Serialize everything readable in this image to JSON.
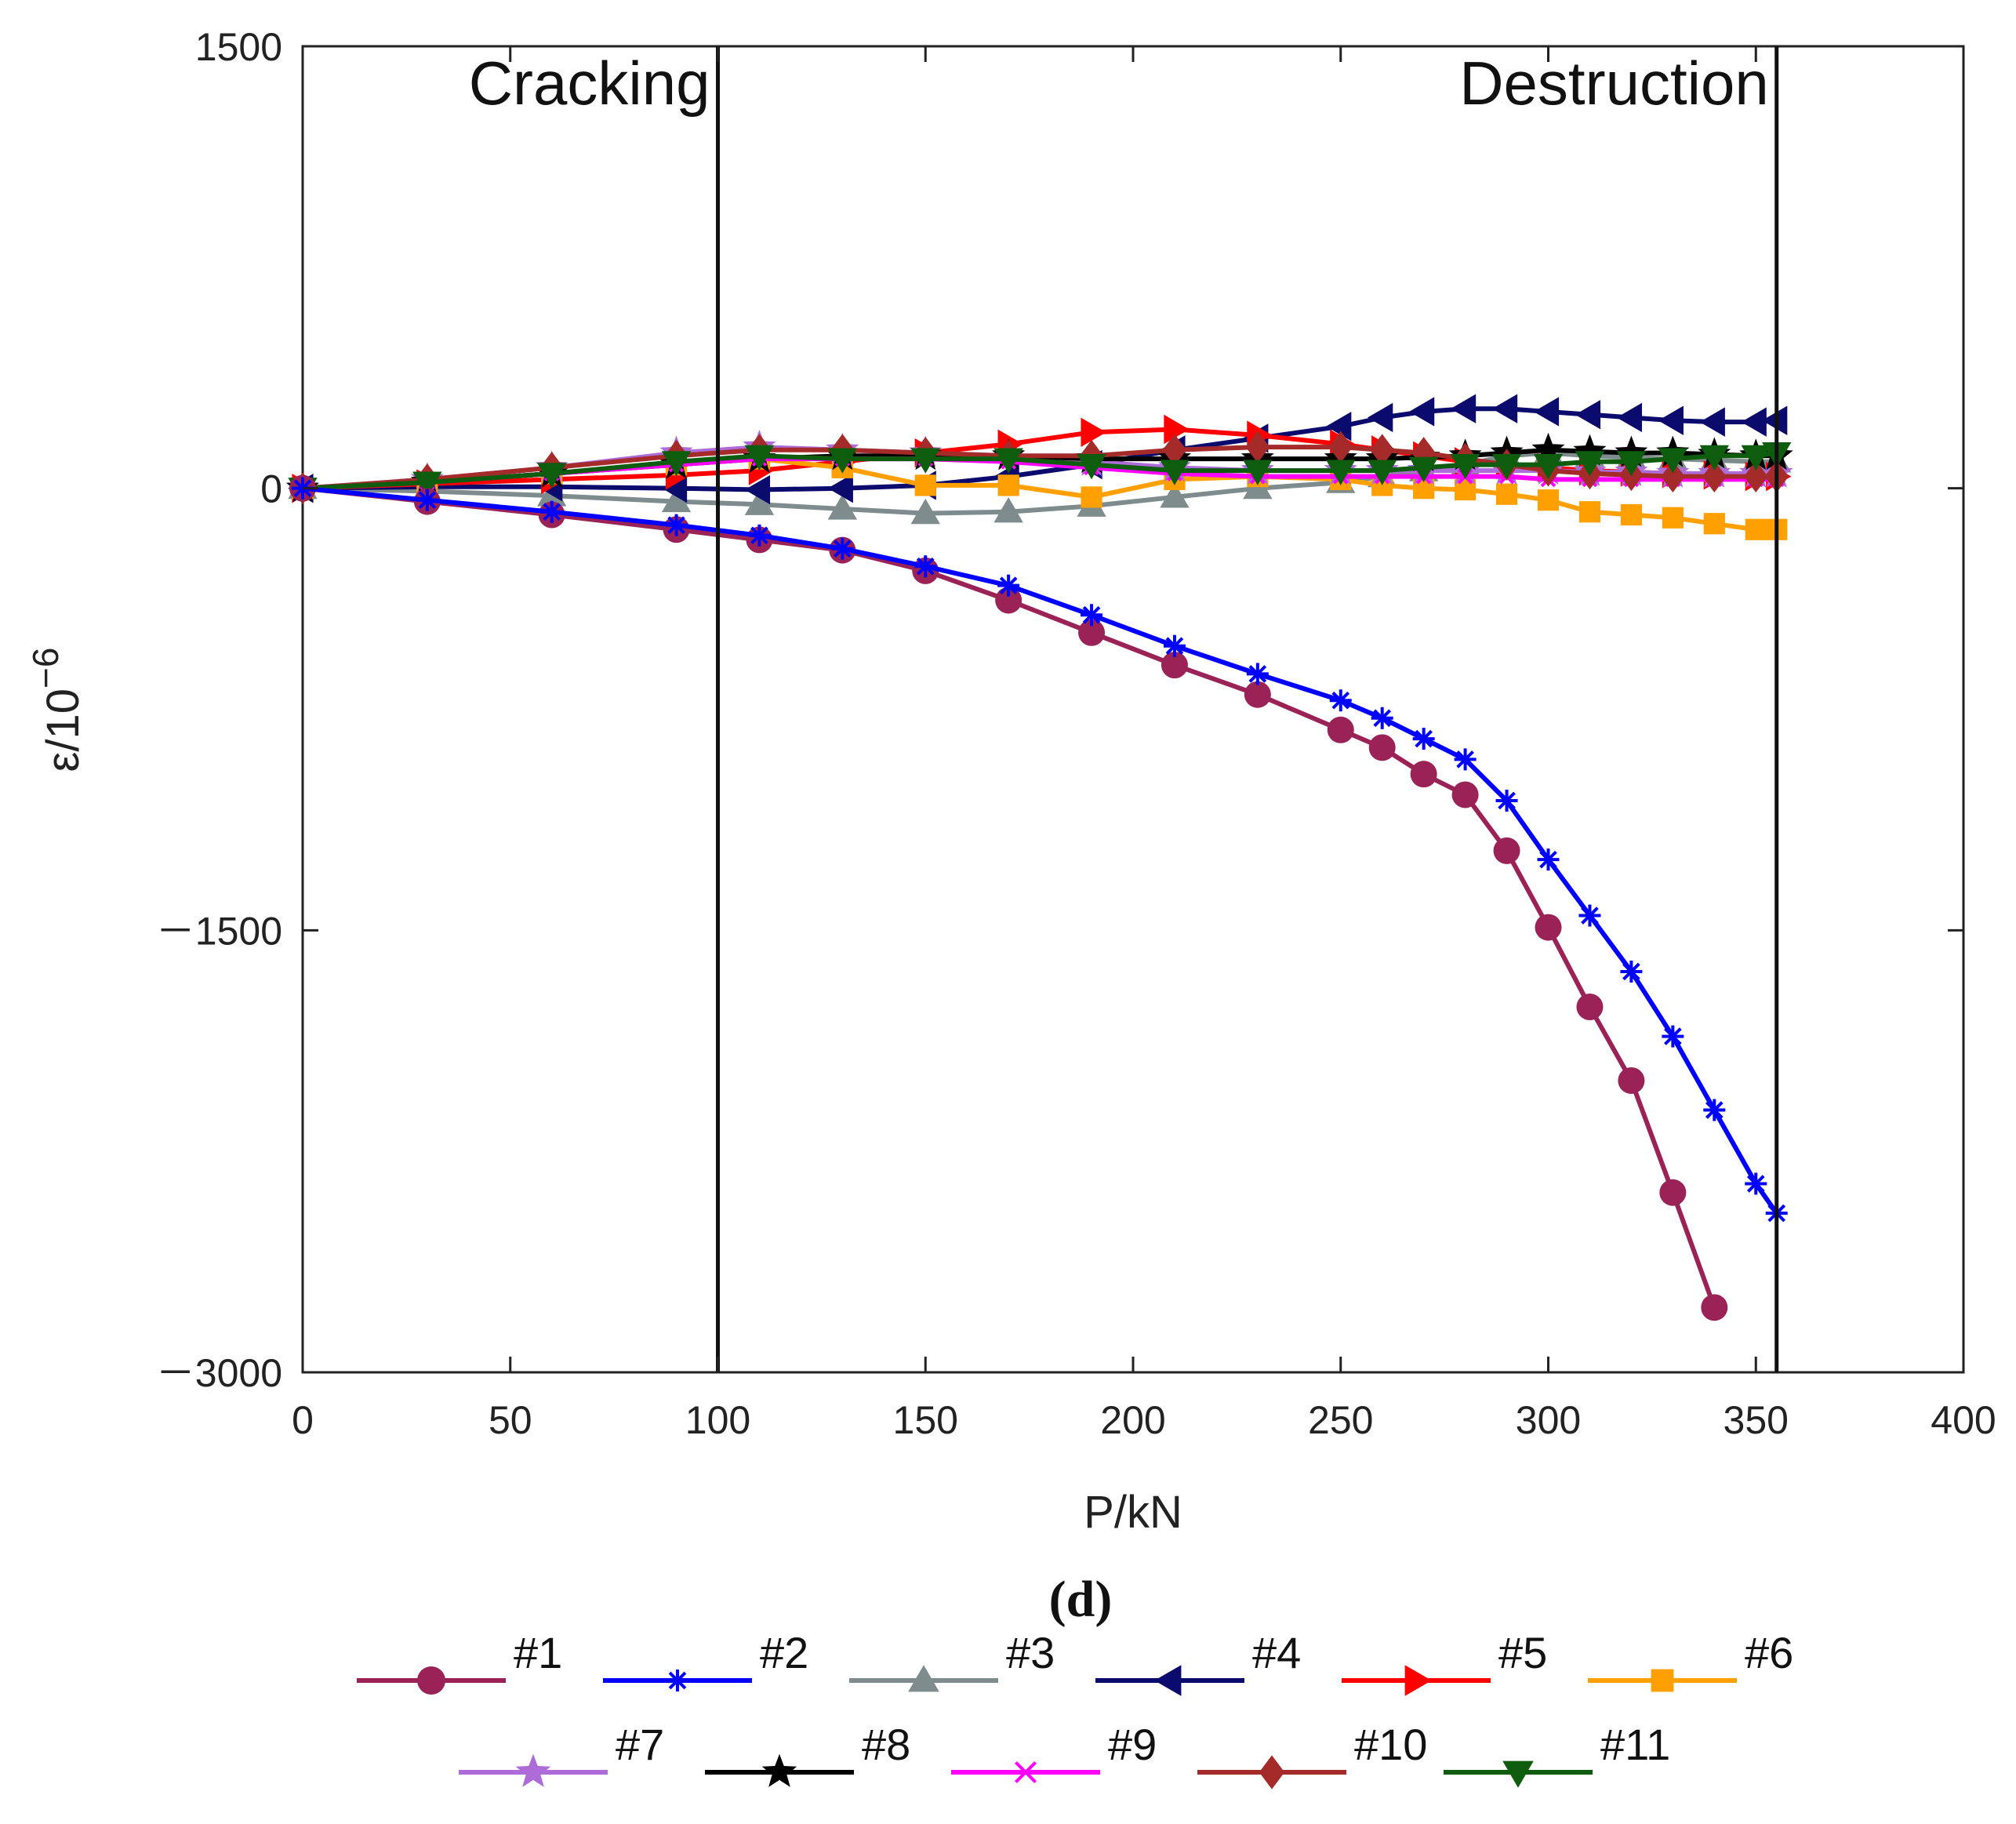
{
  "chart_data": {
    "type": "line",
    "title": "",
    "panel_label": "(d)",
    "xlabel": "P/kN",
    "ylabel": "ε/10",
    "ylabel_exponent": "−6",
    "xlim": [
      0,
      400
    ],
    "ylim": [
      -3000,
      1500
    ],
    "grid": false,
    "legend_position": "bottom",
    "x_ticks": [
      0,
      50,
      100,
      150,
      200,
      250,
      300,
      350,
      400
    ],
    "x_tick_labels": [
      "0",
      "50",
      "100",
      "150",
      "200",
      "250",
      "300",
      "350",
      "400"
    ],
    "y_ticks": [
      1500,
      0,
      -1500,
      -3000
    ],
    "y_tick_labels": [
      "1500",
      "0",
      "－1500",
      "－3000"
    ],
    "annotations": [
      {
        "text": "Cracking",
        "x": 100
      },
      {
        "text": "Destruction",
        "x": 355
      }
    ],
    "series": [
      {
        "name": "#1",
        "color": "#9B2257",
        "marker": "circle",
        "x": [
          0,
          30,
          60,
          90,
          110,
          130,
          150,
          170,
          190,
          210,
          230,
          250,
          260,
          270,
          280,
          290,
          300,
          310,
          320,
          330,
          340
        ],
        "y": [
          0,
          -45,
          -90,
          -140,
          -175,
          -210,
          -280,
          -380,
          -490,
          -600,
          -700,
          -820,
          -880,
          -970,
          -1040,
          -1230,
          -1490,
          -1760,
          -2010,
          -2390,
          -2780
        ]
      },
      {
        "name": "#2",
        "color": "#0000FF",
        "marker": "asterisk",
        "x": [
          0,
          30,
          60,
          90,
          110,
          130,
          150,
          170,
          190,
          210,
          230,
          250,
          260,
          270,
          280,
          290,
          300,
          310,
          320,
          330,
          340,
          350,
          355
        ],
        "y": [
          0,
          -40,
          -80,
          -125,
          -160,
          -205,
          -265,
          -330,
          -430,
          -535,
          -630,
          -720,
          -780,
          -850,
          -920,
          -1060,
          -1260,
          -1450,
          -1640,
          -1860,
          -2110,
          -2360,
          -2460
        ]
      },
      {
        "name": "#3",
        "color": "#7F8C8D",
        "marker": "triangle-up",
        "x": [
          0,
          30,
          60,
          90,
          110,
          130,
          150,
          170,
          190,
          210,
          230,
          250,
          260,
          270,
          280,
          290,
          300,
          310,
          320,
          330,
          340,
          350,
          355
        ],
        "y": [
          0,
          -10,
          -25,
          -45,
          -55,
          -70,
          -85,
          -80,
          -60,
          -30,
          0,
          20,
          40,
          60,
          80,
          110,
          120,
          110,
          105,
          100,
          95,
          90,
          90
        ]
      },
      {
        "name": "#4",
        "color": "#0B0B6E",
        "marker": "triangle-left",
        "x": [
          0,
          30,
          60,
          90,
          110,
          130,
          150,
          170,
          190,
          210,
          230,
          250,
          260,
          270,
          280,
          290,
          300,
          310,
          320,
          330,
          340,
          350,
          355
        ],
        "y": [
          0,
          5,
          5,
          0,
          -5,
          0,
          10,
          40,
          80,
          130,
          170,
          210,
          240,
          260,
          270,
          270,
          260,
          250,
          240,
          230,
          225,
          225,
          230
        ]
      },
      {
        "name": "#5",
        "color": "#FF0000",
        "marker": "triangle-right",
        "x": [
          0,
          30,
          60,
          90,
          110,
          130,
          150,
          170,
          190,
          210,
          230,
          250,
          260,
          270,
          280,
          290,
          300,
          310,
          320,
          330,
          340,
          350,
          355
        ],
        "y": [
          0,
          15,
          30,
          45,
          60,
          90,
          120,
          150,
          190,
          200,
          180,
          150,
          130,
          110,
          90,
          80,
          70,
          60,
          55,
          50,
          45,
          40,
          40
        ]
      },
      {
        "name": "#6",
        "color": "#FFA000",
        "marker": "square",
        "x": [
          0,
          30,
          60,
          90,
          110,
          130,
          150,
          170,
          190,
          210,
          230,
          250,
          260,
          270,
          280,
          290,
          300,
          310,
          320,
          330,
          340,
          350,
          355
        ],
        "y": [
          0,
          20,
          50,
          80,
          100,
          70,
          10,
          10,
          -30,
          30,
          40,
          30,
          10,
          0,
          -5,
          -20,
          -40,
          -80,
          -90,
          -100,
          -120,
          -140,
          -140
        ]
      },
      {
        "name": "#7",
        "color": "#AD6CD8",
        "marker": "star",
        "x": [
          0,
          30,
          60,
          90,
          110,
          130,
          150,
          170,
          190,
          210,
          230,
          250,
          260,
          270,
          280,
          290,
          300,
          310,
          320,
          330,
          340,
          350,
          355
        ],
        "y": [
          0,
          30,
          70,
          120,
          140,
          130,
          120,
          110,
          90,
          70,
          60,
          60,
          60,
          60,
          60,
          60,
          60,
          55,
          55,
          50,
          50,
          50,
          50
        ]
      },
      {
        "name": "#8",
        "color": "#000000",
        "marker": "star",
        "x": [
          0,
          30,
          60,
          90,
          110,
          130,
          150,
          170,
          190,
          210,
          230,
          250,
          260,
          270,
          280,
          290,
          300,
          310,
          320,
          330,
          340,
          350,
          355
        ],
        "y": [
          0,
          20,
          50,
          80,
          100,
          110,
          110,
          110,
          100,
          100,
          100,
          100,
          100,
          105,
          110,
          120,
          130,
          125,
          120,
          120,
          115,
          110,
          110
        ]
      },
      {
        "name": "#9",
        "color": "#FF00FF",
        "marker": "x",
        "x": [
          0,
          30,
          60,
          90,
          110,
          130,
          150,
          170,
          190,
          210,
          230,
          250,
          260,
          270,
          280,
          290,
          300,
          310,
          320,
          330,
          340,
          350,
          355
        ],
        "y": [
          0,
          20,
          50,
          80,
          100,
          100,
          100,
          90,
          70,
          50,
          40,
          40,
          40,
          40,
          40,
          40,
          30,
          30,
          30,
          30,
          30,
          30,
          30
        ]
      },
      {
        "name": "#10",
        "color": "#A52A2A",
        "marker": "diamond",
        "x": [
          0,
          30,
          60,
          90,
          110,
          130,
          150,
          170,
          190,
          210,
          230,
          250,
          260,
          270,
          280,
          290,
          300,
          310,
          320,
          330,
          340,
          350,
          355
        ],
        "y": [
          0,
          30,
          70,
          110,
          130,
          130,
          120,
          110,
          110,
          130,
          140,
          140,
          130,
          120,
          100,
          80,
          60,
          50,
          45,
          40,
          40,
          40,
          40
        ]
      },
      {
        "name": "#11",
        "color": "#0E5C0E",
        "marker": "triangle-down",
        "x": [
          0,
          30,
          60,
          90,
          110,
          130,
          150,
          170,
          190,
          210,
          230,
          250,
          260,
          270,
          280,
          290,
          300,
          310,
          320,
          330,
          340,
          350,
          355
        ],
        "y": [
          0,
          20,
          50,
          90,
          110,
          100,
          100,
          100,
          80,
          60,
          60,
          60,
          60,
          70,
          80,
          80,
          80,
          90,
          90,
          100,
          110,
          110,
          120
        ]
      }
    ]
  }
}
